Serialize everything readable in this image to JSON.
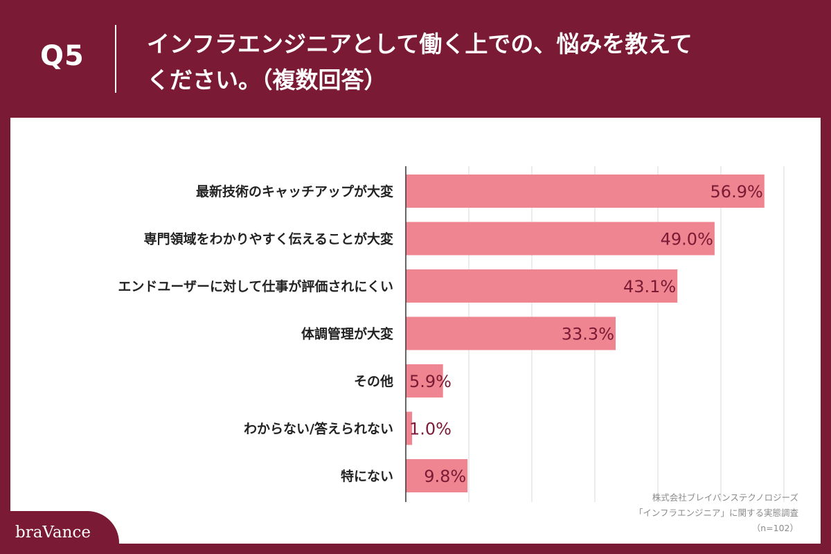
{
  "header": {
    "question_number": "Q5",
    "title_line1": "インフラエンジニアとして働く上での、悩みを教えて",
    "title_line2": "ください。（複数回答）"
  },
  "source": {
    "line1": "株式会社ブレイバンステクノロジーズ",
    "line2": "「インフラエンジニア」に関する実態調査",
    "line3": "（n=102）"
  },
  "logo": {
    "text": "braVance"
  },
  "colors": {
    "background": "#7a1a35",
    "bar": "#ee8590",
    "value_label": "#7a1a35",
    "grid": "#d9d9d9",
    "axis": "#333333"
  },
  "chart_data": {
    "type": "bar",
    "orientation": "horizontal",
    "categories": [
      "最新技術のキャッチアップが大変",
      "専門領域をわかりやすく伝えることが大変",
      "エンドユーザーに対して仕事が評価されにくい",
      "体調管理が大変",
      "その他",
      "わからない/答えられない",
      "特にない"
    ],
    "values": [
      56.9,
      49.0,
      43.1,
      33.3,
      5.9,
      1.0,
      9.8
    ],
    "value_labels": [
      "56.9%",
      "49.0%",
      "43.1%",
      "33.3%",
      "5.9%",
      "1.0%",
      "9.8%"
    ],
    "xlim": [
      0,
      60
    ],
    "grid": true
  }
}
